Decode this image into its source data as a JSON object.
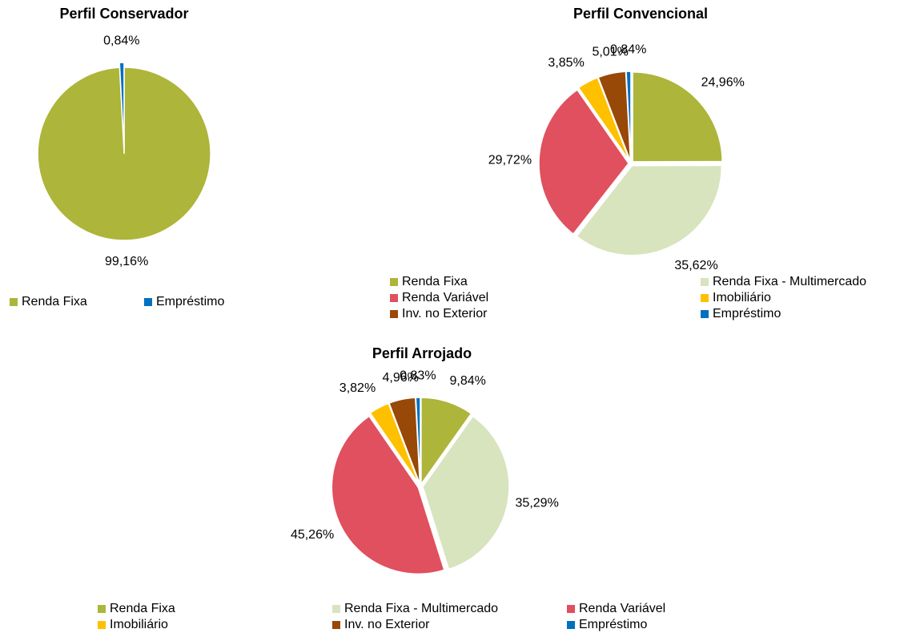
{
  "chart_data": [
    {
      "type": "pie",
      "title": "Perfil Conservador",
      "categories": [
        "Renda Fixa",
        "Empréstimo"
      ],
      "values": [
        99.16,
        0.84
      ],
      "value_labels": [
        "99,16%",
        "0,84%"
      ],
      "colors": [
        "#adb53a",
        "#0070c0"
      ]
    },
    {
      "type": "pie",
      "title": "Perfil Convencional",
      "categories": [
        "Renda Fixa",
        "Renda Fixa - Multimercado",
        "Renda Variável",
        "Imobiliário",
        "Inv. no Exterior",
        "Empréstimo"
      ],
      "values": [
        24.96,
        35.62,
        29.72,
        3.85,
        5.01,
        0.84
      ],
      "value_labels": [
        "24,96%",
        "35,62%",
        "29,72%",
        "3,85%",
        "5,01%",
        "0,84%"
      ],
      "colors": [
        "#adb53a",
        "#d7e4bd",
        "#e0505e",
        "#ffc000",
        "#984807",
        "#0070c0"
      ]
    },
    {
      "type": "pie",
      "title": "Perfil Arrojado",
      "categories": [
        "Renda Fixa",
        "Renda Fixa - Multimercado",
        "Renda Variável",
        "Imobiliário",
        "Inv. no Exterior",
        "Empréstimo"
      ],
      "values": [
        9.84,
        35.29,
        45.26,
        3.82,
        4.96,
        0.83
      ],
      "value_labels": [
        "9,84%",
        "35,29%",
        "45,26%",
        "3,82%",
        "4,96%",
        "0,83%"
      ],
      "colors": [
        "#adb53a",
        "#d7e4bd",
        "#e0505e",
        "#ffc000",
        "#984807",
        "#0070c0"
      ]
    }
  ]
}
